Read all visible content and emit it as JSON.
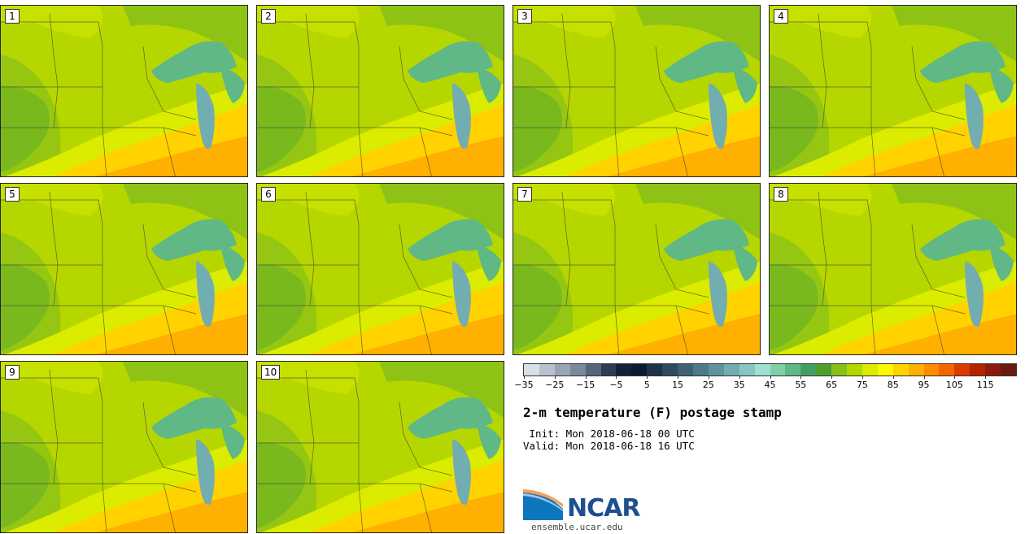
{
  "stamps": [
    {
      "label": "1"
    },
    {
      "label": "2"
    },
    {
      "label": "3"
    },
    {
      "label": "4"
    },
    {
      "label": "5"
    },
    {
      "label": "6"
    },
    {
      "label": "7"
    },
    {
      "label": "8"
    },
    {
      "label": "9"
    },
    {
      "label": "10"
    }
  ],
  "colorbar": {
    "colors": [
      "#d8dfe6",
      "#b7c2cc",
      "#98a6b4",
      "#7a8a9c",
      "#56657a",
      "#2e3c52",
      "#13203a",
      "#0c1a2c",
      "#1e3347",
      "#2f4a5e",
      "#3f6273",
      "#4f7a88",
      "#5f939d",
      "#72adb0",
      "#86c7c2",
      "#9ee0d3",
      "#82cfa6",
      "#5fb885",
      "#42a064",
      "#4e9f2e",
      "#87c01a",
      "#b6d600",
      "#dbec00",
      "#fbf800",
      "#ffd200",
      "#ffb000",
      "#ff8c00",
      "#f56600",
      "#dd3a00",
      "#b52200",
      "#8c1a10",
      "#6a1a10"
    ],
    "tick_labels": [
      "−35",
      "−25",
      "−15",
      "−5",
      "5",
      "15",
      "25",
      "35",
      "45",
      "55",
      "65",
      "75",
      "85",
      "95",
      "105",
      "115"
    ]
  },
  "title": "2-m temperature (F) postage stamp",
  "init_line": " Init: Mon 2018-06-18 00 UTC",
  "valid_line": "Valid: Mon 2018-06-18 16 UTC",
  "logo": {
    "text": "NCAR",
    "website": "ensemble.ucar.edu"
  }
}
